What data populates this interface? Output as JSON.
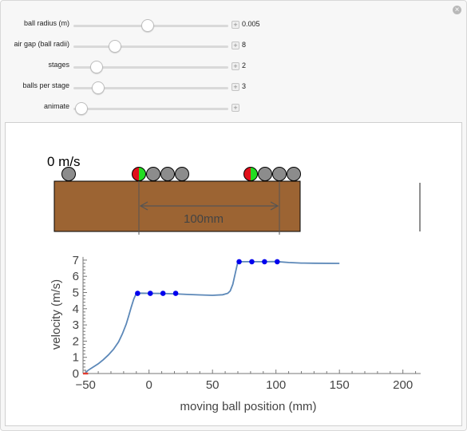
{
  "controls": [
    {
      "label": "ball radius (m)",
      "value": "0.005",
      "position": 0.48
    },
    {
      "label": "air gap (ball radii)",
      "value": "8",
      "position": 0.27
    },
    {
      "label": "stages",
      "value": "2",
      "position": 0.15
    },
    {
      "label": "balls per stage",
      "value": "3",
      "position": 0.16
    },
    {
      "label": "animate",
      "value": "",
      "position": 0.05
    }
  ],
  "scene": {
    "velocity_readout": "0 m/s",
    "dimension_label": "100mm",
    "colors": {
      "wood": "#9c6433",
      "ball": "#8c8c8c",
      "ball_red": "#e0101a",
      "ball_green": "#22dd22",
      "curve": "#5c88b8",
      "points": "#0000ee",
      "start": "#e23b2e"
    }
  },
  "chart_data": {
    "type": "line",
    "xlabel": "moving ball position (mm)",
    "ylabel": "velocity (m/s)",
    "xlim": [
      -52,
      214
    ],
    "ylim": [
      0,
      7.2
    ],
    "xticks": [
      -50,
      0,
      50,
      100,
      150,
      200
    ],
    "yticks": [
      0,
      1,
      2,
      3,
      4,
      5,
      6,
      7
    ],
    "curve": [
      [
        -50,
        0.05
      ],
      [
        -48,
        0.2
      ],
      [
        -44,
        0.4
      ],
      [
        -40,
        0.6
      ],
      [
        -36,
        0.85
      ],
      [
        -32,
        1.15
      ],
      [
        -28,
        1.5
      ],
      [
        -24,
        1.95
      ],
      [
        -21,
        2.45
      ],
      [
        -18,
        3.05
      ],
      [
        -16,
        3.55
      ],
      [
        -14,
        4.1
      ],
      [
        -12,
        4.6
      ],
      [
        -10,
        4.95
      ],
      [
        -6,
        4.96
      ],
      [
        0,
        4.95
      ],
      [
        10,
        4.94
      ],
      [
        20,
        4.92
      ],
      [
        30,
        4.88
      ],
      [
        40,
        4.85
      ],
      [
        50,
        4.83
      ],
      [
        58,
        4.86
      ],
      [
        62,
        4.95
      ],
      [
        64,
        5.1
      ],
      [
        66,
        5.5
      ],
      [
        68,
        6.2
      ],
      [
        70,
        6.9
      ],
      [
        80,
        6.9
      ],
      [
        90,
        6.9
      ],
      [
        100,
        6.91
      ],
      [
        110,
        6.85
      ],
      [
        120,
        6.82
      ],
      [
        130,
        6.81
      ],
      [
        150,
        6.8
      ]
    ],
    "points": [
      {
        "x": -9,
        "y": 4.95
      },
      {
        "x": 1,
        "y": 4.95
      },
      {
        "x": 11,
        "y": 4.95
      },
      {
        "x": 21,
        "y": 4.95
      },
      {
        "x": 71,
        "y": 6.9
      },
      {
        "x": 81,
        "y": 6.9
      },
      {
        "x": 91,
        "y": 6.9
      },
      {
        "x": 101,
        "y": 6.9
      }
    ],
    "start_segment": [
      [
        -52,
        0
      ],
      [
        -48,
        0
      ]
    ]
  }
}
